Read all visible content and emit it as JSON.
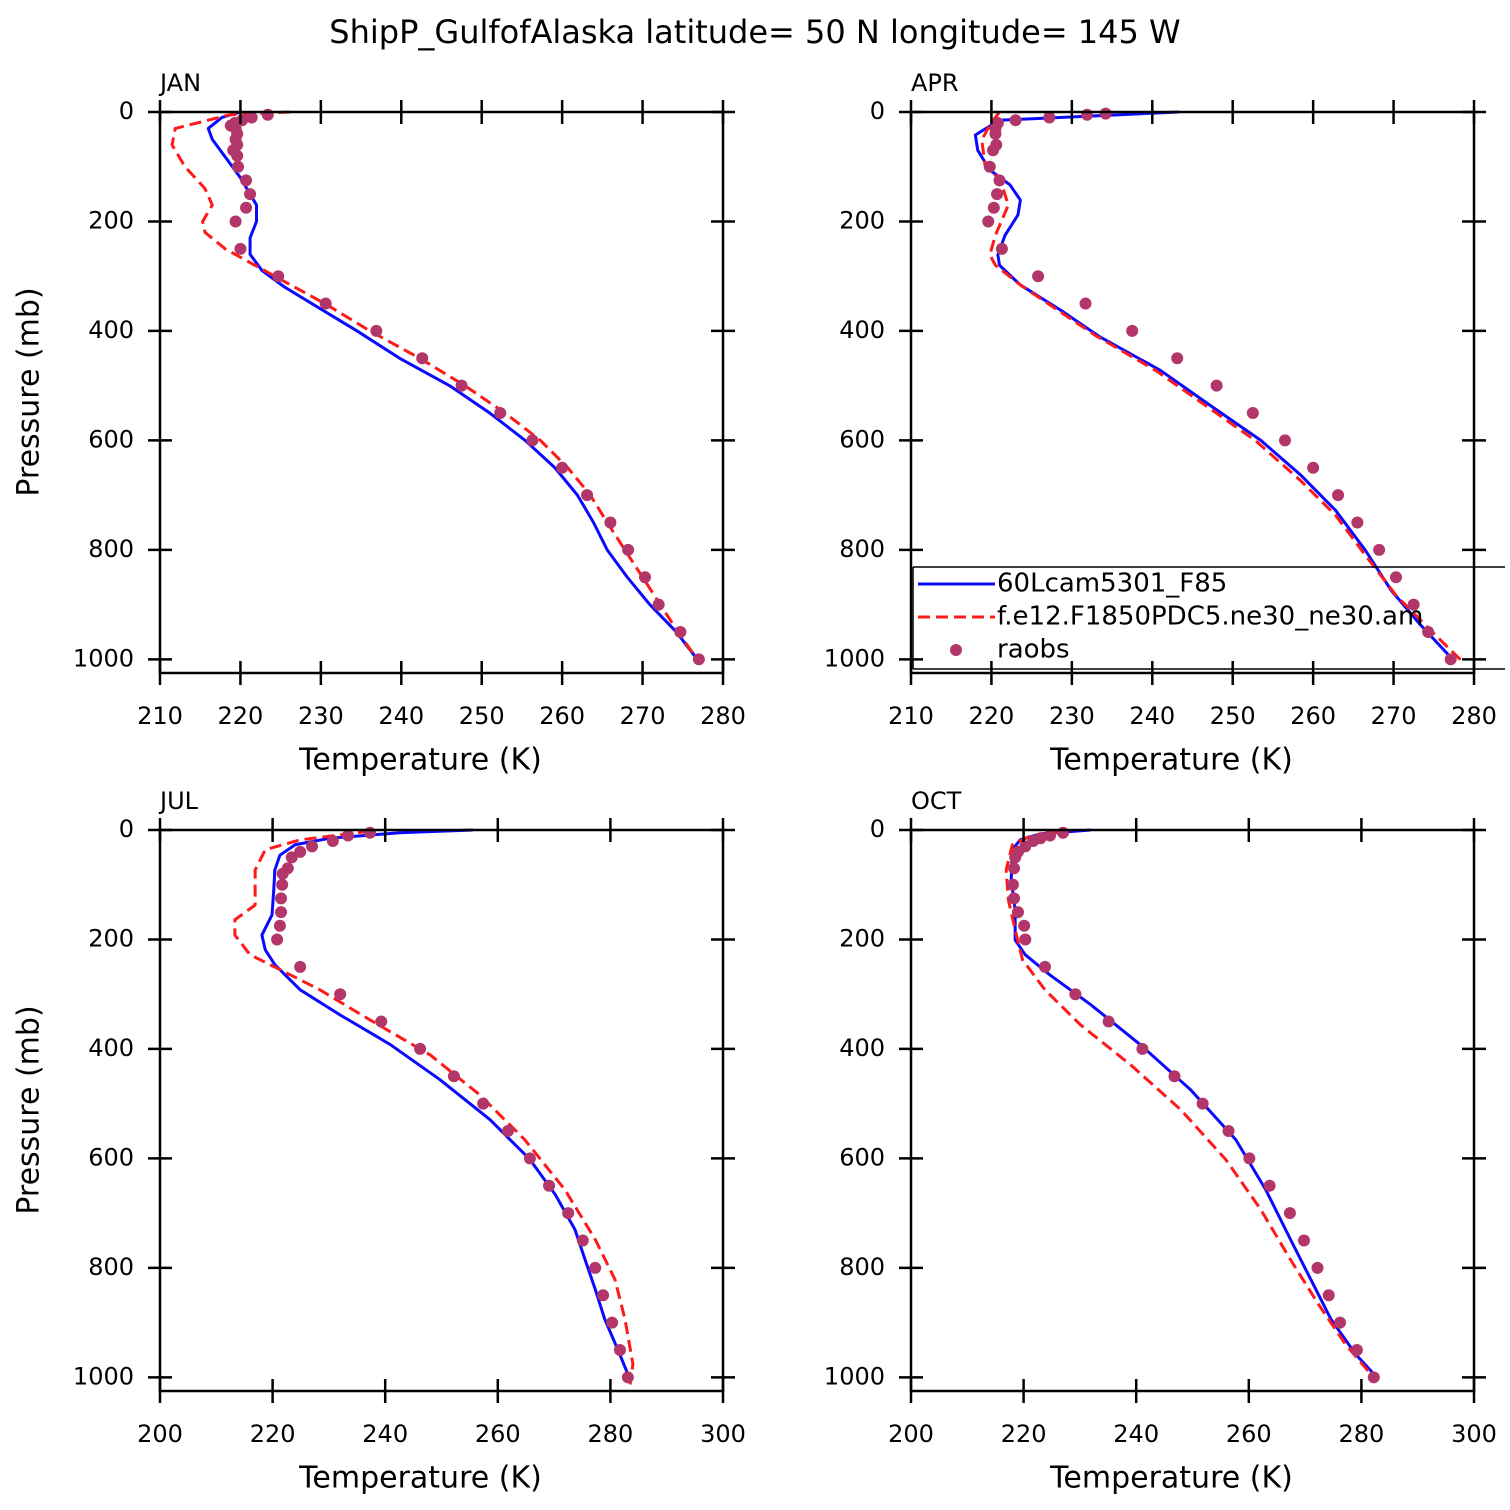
{
  "title": "ShipP_GulfofAlaska  latitude= 50 N longitude= 145 W",
  "chart_data": [
    {
      "type": "line",
      "title": "JAN",
      "xlabel": "Temperature (K)",
      "ylabel": "Pressure (mb)",
      "xlim": [
        210,
        280
      ],
      "xticks": [
        210,
        220,
        230,
        240,
        250,
        260,
        270,
        280
      ],
      "ylim": [
        0,
        1025
      ],
      "y_inverted": true,
      "yticks": [
        0,
        200,
        400,
        600,
        800,
        1000
      ],
      "series": [
        {
          "color": "#0a0aff",
          "dash": "solid",
          "x": [
            220,
            217.7,
            216,
            216.5,
            218,
            220,
            221.2,
            222,
            222,
            221.2,
            221.2,
            222.7,
            225.5,
            230,
            234.5,
            239.8,
            246,
            251,
            255.4,
            259.1,
            261.9,
            263.9,
            265.6,
            268.1,
            270.9,
            274.2,
            276.8
          ],
          "y": [
            0,
            10,
            30,
            50,
            80,
            120,
            150,
            170,
            200,
            230,
            260,
            290,
            320,
            360,
            400,
            450,
            500,
            550,
            600,
            650,
            700,
            750,
            800,
            850,
            900,
            950,
            1000
          ]
        },
        {
          "color": "#ff1a1a",
          "dash": "dashed",
          "x": [
            226.2,
            218.7,
            211.9,
            211.5,
            213.1,
            215.6,
            216.5,
            215.3,
            215.6,
            218.1,
            221.8,
            225.5,
            230.5,
            236.1,
            242.3,
            247.9,
            252.9,
            257.3,
            260.7,
            263.5,
            265.6,
            267.8,
            270,
            272.2,
            274.4,
            276.8
          ],
          "y": [
            0,
            5,
            30,
            60,
            100,
            140,
            170,
            200,
            220,
            250,
            280,
            310,
            350,
            400,
            450,
            500,
            550,
            600,
            650,
            700,
            750,
            800,
            850,
            900,
            950,
            1000
          ]
        },
        {
          "color": "#b2366a",
          "marker": "dot",
          "x": [
            223.4,
            221.4,
            220.2,
            219.3,
            218.8,
            219.4,
            219.6,
            219.4,
            219.6,
            219.1,
            219.6,
            219.7,
            220.7,
            221.2,
            220.7,
            219.4,
            220,
            224.7,
            230.6,
            236.9,
            242.6,
            247.5,
            252.3,
            256.3,
            260,
            263.1,
            266,
            268.2,
            270.3,
            272,
            274.7,
            277
          ],
          "y": [
            5,
            10,
            15,
            20,
            25,
            30,
            40,
            50,
            60,
            70,
            80,
            100,
            125,
            150,
            175,
            200,
            250,
            300,
            350,
            400,
            450,
            500,
            550,
            600,
            650,
            700,
            750,
            800,
            850,
            900,
            950,
            1000
          ]
        }
      ]
    },
    {
      "type": "line",
      "title": "APR",
      "xlabel": "Temperature (K)",
      "xlim": [
        210,
        280
      ],
      "xticks": [
        210,
        220,
        230,
        240,
        250,
        260,
        270,
        280
      ],
      "ylim": [
        0,
        1025
      ],
      "y_inverted": true,
      "yticks": [
        0,
        200,
        400,
        600,
        800,
        1000
      ],
      "legend": "lower right",
      "series": [
        {
          "name": "60Lcam5301_F85",
          "color": "#0a0aff",
          "dash": "solid",
          "x": [
            243.3,
            221,
            218,
            218.3,
            219.8,
            222.3,
            223.6,
            223.3,
            221.7,
            220.8,
            221,
            223.6,
            228.6,
            233.5,
            241,
            247.2,
            253.5,
            258.5,
            262.8,
            266.5,
            269.7,
            273.4,
            276.9,
            277.3
          ],
          "y": [
            0,
            15,
            42,
            70,
            106,
            133,
            161,
            188,
            225,
            261,
            280,
            316,
            362,
            411,
            472,
            536,
            600,
            664,
            728,
            801,
            874,
            938,
            993,
            1000
          ]
        },
        {
          "name": "f.e12.F1850PDC5.ne30_ne30.am",
          "color": "#ff1a1a",
          "dash": "dashed",
          "x": [
            221,
            219.8,
            218.8,
            219.2,
            221.1,
            222.1,
            220.5,
            219.8,
            220.5,
            223.6,
            232.9,
            240.4,
            246.6,
            252.8,
            258.4,
            262.8,
            266.5,
            270.3,
            274.6,
            278.4
          ],
          "y": [
            0,
            24,
            51,
            97,
            124,
            170,
            225,
            261,
            280,
            316,
            408,
            472,
            536,
            600,
            673,
            737,
            810,
            883,
            947,
            1002
          ]
        },
        {
          "name": "raobs",
          "color": "#b2366a",
          "marker": "dot",
          "x": [
            234.2,
            231.9,
            227.2,
            223,
            220.8,
            220.5,
            220.5,
            220.6,
            220.2,
            219.8,
            221,
            220.7,
            220.3,
            219.6,
            221.3,
            225.8,
            231.7,
            237.5,
            243.1,
            248,
            252.5,
            256.5,
            260,
            263.1,
            265.5,
            268.2,
            270.3,
            272.5,
            274.3,
            277.1
          ],
          "y": [
            3,
            5,
            10,
            15,
            20,
            30,
            40,
            60,
            70,
            100,
            125,
            150,
            175,
            200,
            250,
            300,
            350,
            400,
            450,
            500,
            550,
            600,
            650,
            700,
            750,
            800,
            850,
            900,
            950,
            1000
          ]
        }
      ]
    },
    {
      "type": "line",
      "title": "JUL",
      "xlabel": "Temperature (K)",
      "ylabel": "Pressure (mb)",
      "xlim": [
        200,
        300
      ],
      "xticks": [
        200,
        220,
        240,
        260,
        280,
        300
      ],
      "ylim": [
        0,
        1025
      ],
      "y_inverted": true,
      "yticks": [
        0,
        200,
        400,
        600,
        800,
        1000
      ],
      "series": [
        {
          "color": "#0a0aff",
          "dash": "solid",
          "x": [
            255.6,
            242.6,
            230.2,
            224,
            221.3,
            220.4,
            220.2,
            219.9,
            218.1,
            218.7,
            220.4,
            224.9,
            232,
            240.9,
            249.7,
            258.6,
            265.7,
            270.2,
            273.7,
            275.5,
            277.3,
            279,
            281.3,
            283.5
          ],
          "y": [
            0,
            5,
            15,
            27,
            46,
            73,
            110,
            155,
            192,
            219,
            246,
            292,
            338,
            392,
            456,
            529,
            602,
            666,
            730,
            785,
            839,
            894,
            949,
            1004
          ]
        },
        {
          "color": "#ff1a1a",
          "dash": "dashed",
          "x": [
            237.3,
            224.9,
            218.7,
            216.9,
            216.9,
            213.3,
            213.3,
            216,
            221.3,
            228.4,
            237.3,
            248,
            256.8,
            264.8,
            271.9,
            277.3,
            280.8,
            282.6,
            284,
            283.5
          ],
          "y": [
            2,
            18,
            36,
            73,
            137,
            164,
            192,
            228,
            255,
            292,
            347,
            411,
            484,
            566,
            657,
            748,
            821,
            894,
            976,
            1013
          ]
        },
        {
          "color": "#b2366a",
          "marker": "dot",
          "x": [
            237.3,
            233.4,
            230.7,
            227,
            224.9,
            223.4,
            222.7,
            221.8,
            221.7,
            221.5,
            221.5,
            221.3,
            220.8,
            224.9,
            232,
            239.3,
            246.2,
            252.2,
            257.4,
            261.8,
            265.7,
            269.1,
            272.5,
            275.1,
            277.3,
            278.7,
            280.3,
            281.7,
            283.1
          ],
          "y": [
            5,
            10,
            20,
            30,
            40,
            50,
            70,
            80,
            100,
            125,
            150,
            175,
            200,
            250,
            300,
            350,
            400,
            450,
            500,
            550,
            600,
            650,
            700,
            750,
            800,
            850,
            900,
            950,
            1000
          ]
        }
      ]
    },
    {
      "type": "line",
      "title": "OCT",
      "xlabel": "Temperature (K)",
      "xlim": [
        200,
        300
      ],
      "xticks": [
        200,
        220,
        240,
        260,
        280,
        300
      ],
      "ylim": [
        0,
        1025
      ],
      "y_inverted": true,
      "yticks": [
        0,
        200,
        400,
        600,
        800,
        1000
      ],
      "series": [
        {
          "color": "#0a0aff",
          "dash": "solid",
          "x": [
            231.9,
            223,
            219.4,
            218,
            217.8,
            218.5,
            218.5,
            220.3,
            224.7,
            231.9,
            240.7,
            249.6,
            257.7,
            263,
            267.4,
            271,
            274.6,
            279,
            283.1
          ],
          "y": [
            0,
            7,
            18,
            36,
            91,
            146,
            201,
            228,
            265,
            319,
            392,
            474,
            566,
            657,
            748,
            821,
            894,
            958,
            1004
          ]
        },
        {
          "color": "#ff1a1a",
          "dash": "dashed",
          "x": [
            227.4,
            221.2,
            218,
            216.9,
            217.3,
            218.5,
            219.8,
            223.8,
            230.1,
            239,
            247.9,
            255.9,
            262.1,
            267.4,
            272.4,
            277.2,
            282.5
          ],
          "y": [
            2,
            11,
            27,
            73,
            128,
            182,
            237,
            292,
            356,
            429,
            511,
            602,
            693,
            785,
            867,
            940,
            1004
          ]
        },
        {
          "color": "#b2366a",
          "marker": "dot",
          "x": [
            227,
            224.7,
            223,
            221.7,
            220.3,
            219,
            218.5,
            218.3,
            218.1,
            218.3,
            219,
            220.1,
            220.3,
            223.8,
            229.2,
            235.1,
            241.1,
            246.8,
            251.8,
            256.4,
            260.1,
            263.7,
            267.3,
            269.8,
            272.2,
            274.2,
            276.2,
            279.2,
            282.2
          ],
          "y": [
            5,
            10,
            15,
            20,
            30,
            40,
            50,
            70,
            100,
            125,
            150,
            175,
            200,
            250,
            300,
            350,
            400,
            450,
            500,
            550,
            600,
            650,
            700,
            750,
            800,
            850,
            900,
            950,
            1000
          ]
        }
      ]
    }
  ]
}
